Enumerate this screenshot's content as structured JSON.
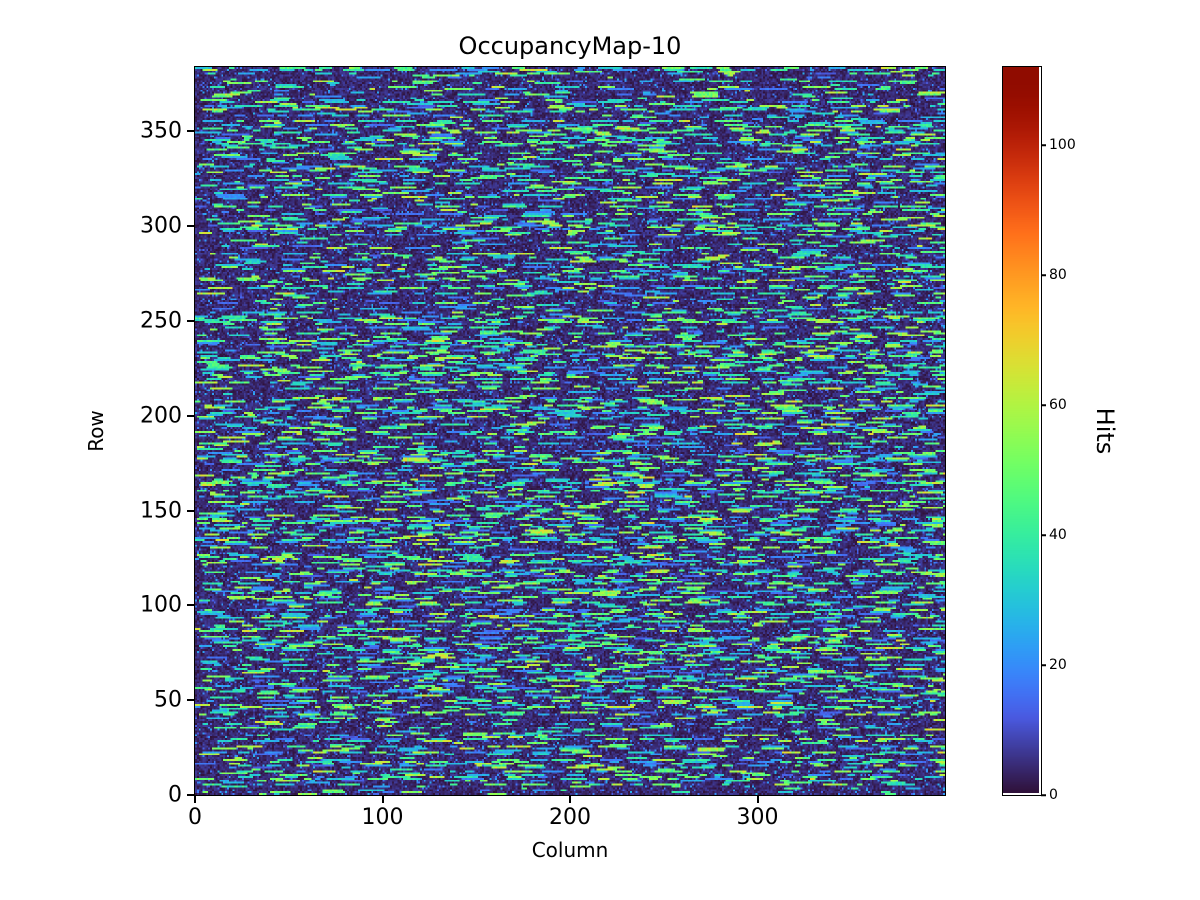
{
  "chart_data": {
    "type": "heatmap",
    "title": "OccupancyMap-10",
    "xlabel": "Column",
    "ylabel": "Row",
    "colorbar_label": "Hits",
    "colormap": "turbo",
    "x_range": [
      0,
      400
    ],
    "y_range": [
      0,
      384
    ],
    "value_range": [
      0,
      112
    ],
    "x_ticks": [
      0,
      100,
      200,
      300
    ],
    "y_ticks": [
      0,
      50,
      100,
      150,
      200,
      250,
      300,
      350
    ],
    "colorbar_ticks": [
      0,
      20,
      40,
      60,
      80,
      100
    ],
    "grid": false,
    "pattern": {
      "description": "Dense random occupancy noise: mostly near-zero (dark indigo) background with short horizontal dashes of elevated hit counts (blue ~15-30, cyan/green ~30-60) scattered across nearly every row; row-to-row density varies.",
      "seed": 20,
      "background_value_max": 7,
      "active_row_probability": 0.6,
      "dash_start_probability": 0.08,
      "dash_length_range": [
        3,
        16
      ],
      "dash_value_range": [
        28,
        62
      ],
      "blue_dash_fraction": 0.25,
      "blue_dash_value_range": [
        12,
        28
      ],
      "sparse_dash_start_probability": 0.02,
      "speckle_probability": 0.07,
      "speckle_value_range": [
        8,
        26
      ]
    }
  }
}
